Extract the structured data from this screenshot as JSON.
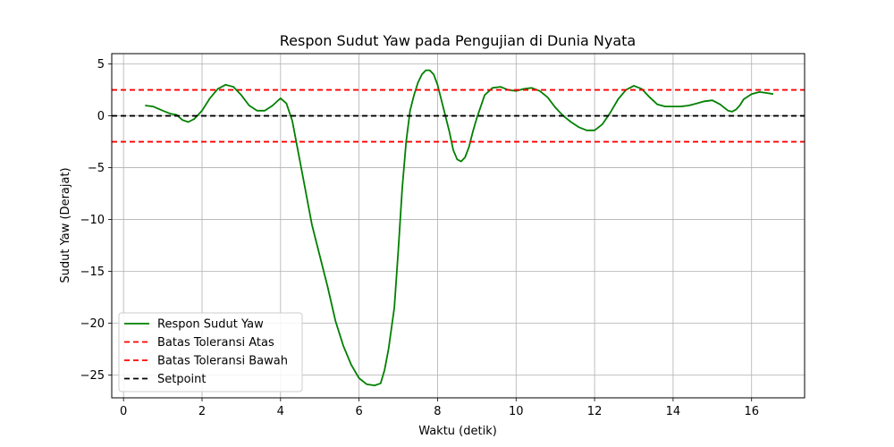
{
  "chart_data": {
    "type": "line",
    "title": "Respon Sudut Yaw pada Pengujian di Dunia Nyata",
    "xlabel": "Waktu (detik)",
    "ylabel": "Sudut Yaw (Derajat)",
    "xlim": [
      -0.3,
      17.35
    ],
    "ylim": [
      -27.2,
      6.0
    ],
    "xticks": [
      0,
      2,
      4,
      6,
      8,
      10,
      12,
      14,
      16
    ],
    "yticks": [
      5,
      0,
      -5,
      -10,
      -15,
      -20,
      -25
    ],
    "grid": true,
    "legend_position": "lower-left",
    "series": [
      {
        "name": "Respon Sudut Yaw",
        "color": "#008000",
        "style": "solid",
        "x": [
          0.55,
          0.75,
          1.0,
          1.2,
          1.35,
          1.5,
          1.65,
          1.8,
          2.0,
          2.2,
          2.4,
          2.6,
          2.8,
          3.0,
          3.2,
          3.4,
          3.6,
          3.8,
          4.0,
          4.15,
          4.3,
          4.45,
          4.6,
          4.8,
          5.0,
          5.2,
          5.4,
          5.6,
          5.8,
          6.0,
          6.2,
          6.4,
          6.55,
          6.65,
          6.75,
          6.9,
          7.0,
          7.1,
          7.2,
          7.3,
          7.4,
          7.5,
          7.6,
          7.7,
          7.8,
          7.9,
          8.0,
          8.1,
          8.2,
          8.3,
          8.4,
          8.5,
          8.6,
          8.7,
          8.8,
          8.9,
          9.0,
          9.2,
          9.4,
          9.6,
          9.8,
          10.0,
          10.2,
          10.4,
          10.6,
          10.8,
          11.0,
          11.2,
          11.4,
          11.6,
          11.8,
          12.0,
          12.2,
          12.4,
          12.6,
          12.8,
          13.0,
          13.2,
          13.4,
          13.6,
          13.8,
          14.0,
          14.2,
          14.4,
          14.6,
          14.8,
          15.0,
          15.2,
          15.4,
          15.5,
          15.6,
          15.7,
          15.8,
          16.0,
          16.2,
          16.4,
          16.55
        ],
        "y": [
          1.0,
          0.9,
          0.5,
          0.2,
          0.1,
          -0.4,
          -0.6,
          -0.3,
          0.5,
          1.7,
          2.6,
          3.0,
          2.8,
          2.0,
          1.0,
          0.5,
          0.5,
          1.0,
          1.7,
          1.2,
          -0.5,
          -3.5,
          -6.5,
          -10.5,
          -13.5,
          -16.5,
          -19.8,
          -22.2,
          -24.0,
          -25.3,
          -25.9,
          -26.0,
          -25.8,
          -24.5,
          -22.5,
          -18.5,
          -13.0,
          -7.0,
          -2.5,
          0.5,
          2.0,
          3.2,
          4.0,
          4.4,
          4.4,
          4.0,
          3.0,
          1.5,
          0.0,
          -1.5,
          -3.3,
          -4.2,
          -4.4,
          -4.0,
          -3.0,
          -1.5,
          -0.2,
          2.0,
          2.7,
          2.8,
          2.5,
          2.4,
          2.6,
          2.7,
          2.4,
          1.8,
          0.8,
          0.0,
          -0.6,
          -1.1,
          -1.4,
          -1.4,
          -0.8,
          0.3,
          1.6,
          2.5,
          2.9,
          2.6,
          1.8,
          1.1,
          0.9,
          0.9,
          0.9,
          1.0,
          1.2,
          1.4,
          1.5,
          1.1,
          0.5,
          0.4,
          0.6,
          1.0,
          1.6,
          2.1,
          2.3,
          2.2,
          2.1
        ]
      },
      {
        "name": "Batas Toleransi Atas",
        "color": "#ff0000",
        "style": "dashed",
        "hline": 2.5
      },
      {
        "name": "Batas Toleransi Bawah",
        "color": "#ff0000",
        "style": "dashed",
        "hline": -2.5
      },
      {
        "name": "Setpoint",
        "color": "#000000",
        "style": "dashed",
        "hline": 0
      }
    ]
  }
}
